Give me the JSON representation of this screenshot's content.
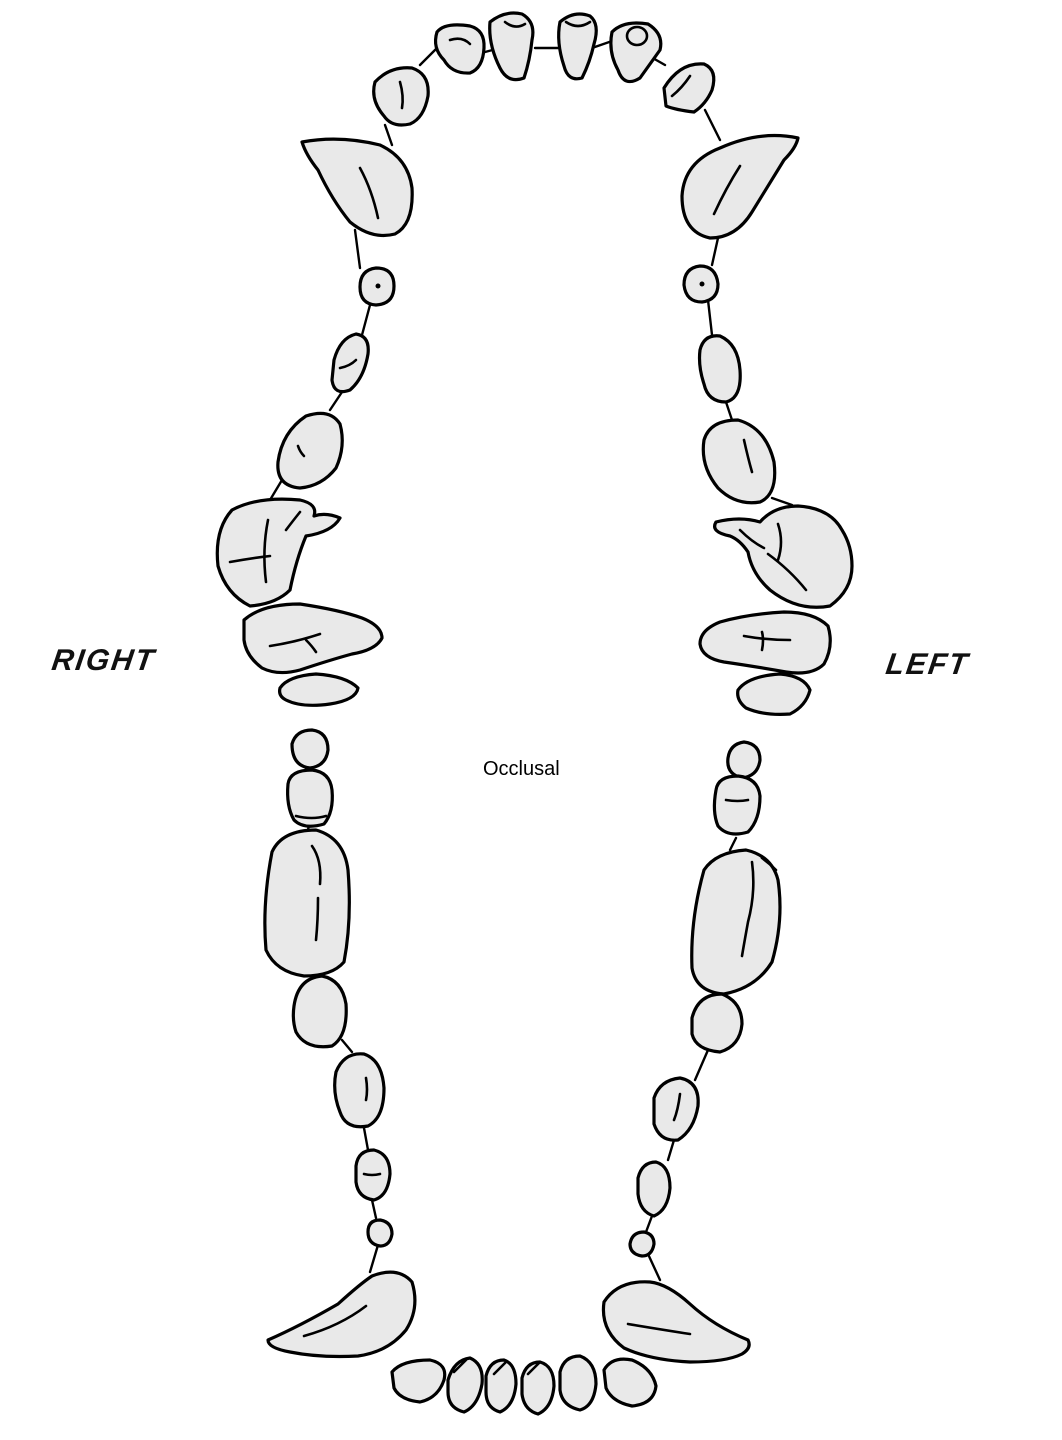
{
  "labels": {
    "right": "RIGHT",
    "left": "LEFT",
    "view": "Occlusal"
  },
  "colors": {
    "tooth_fill": "#e9e9e9",
    "outline": "#000000"
  }
}
